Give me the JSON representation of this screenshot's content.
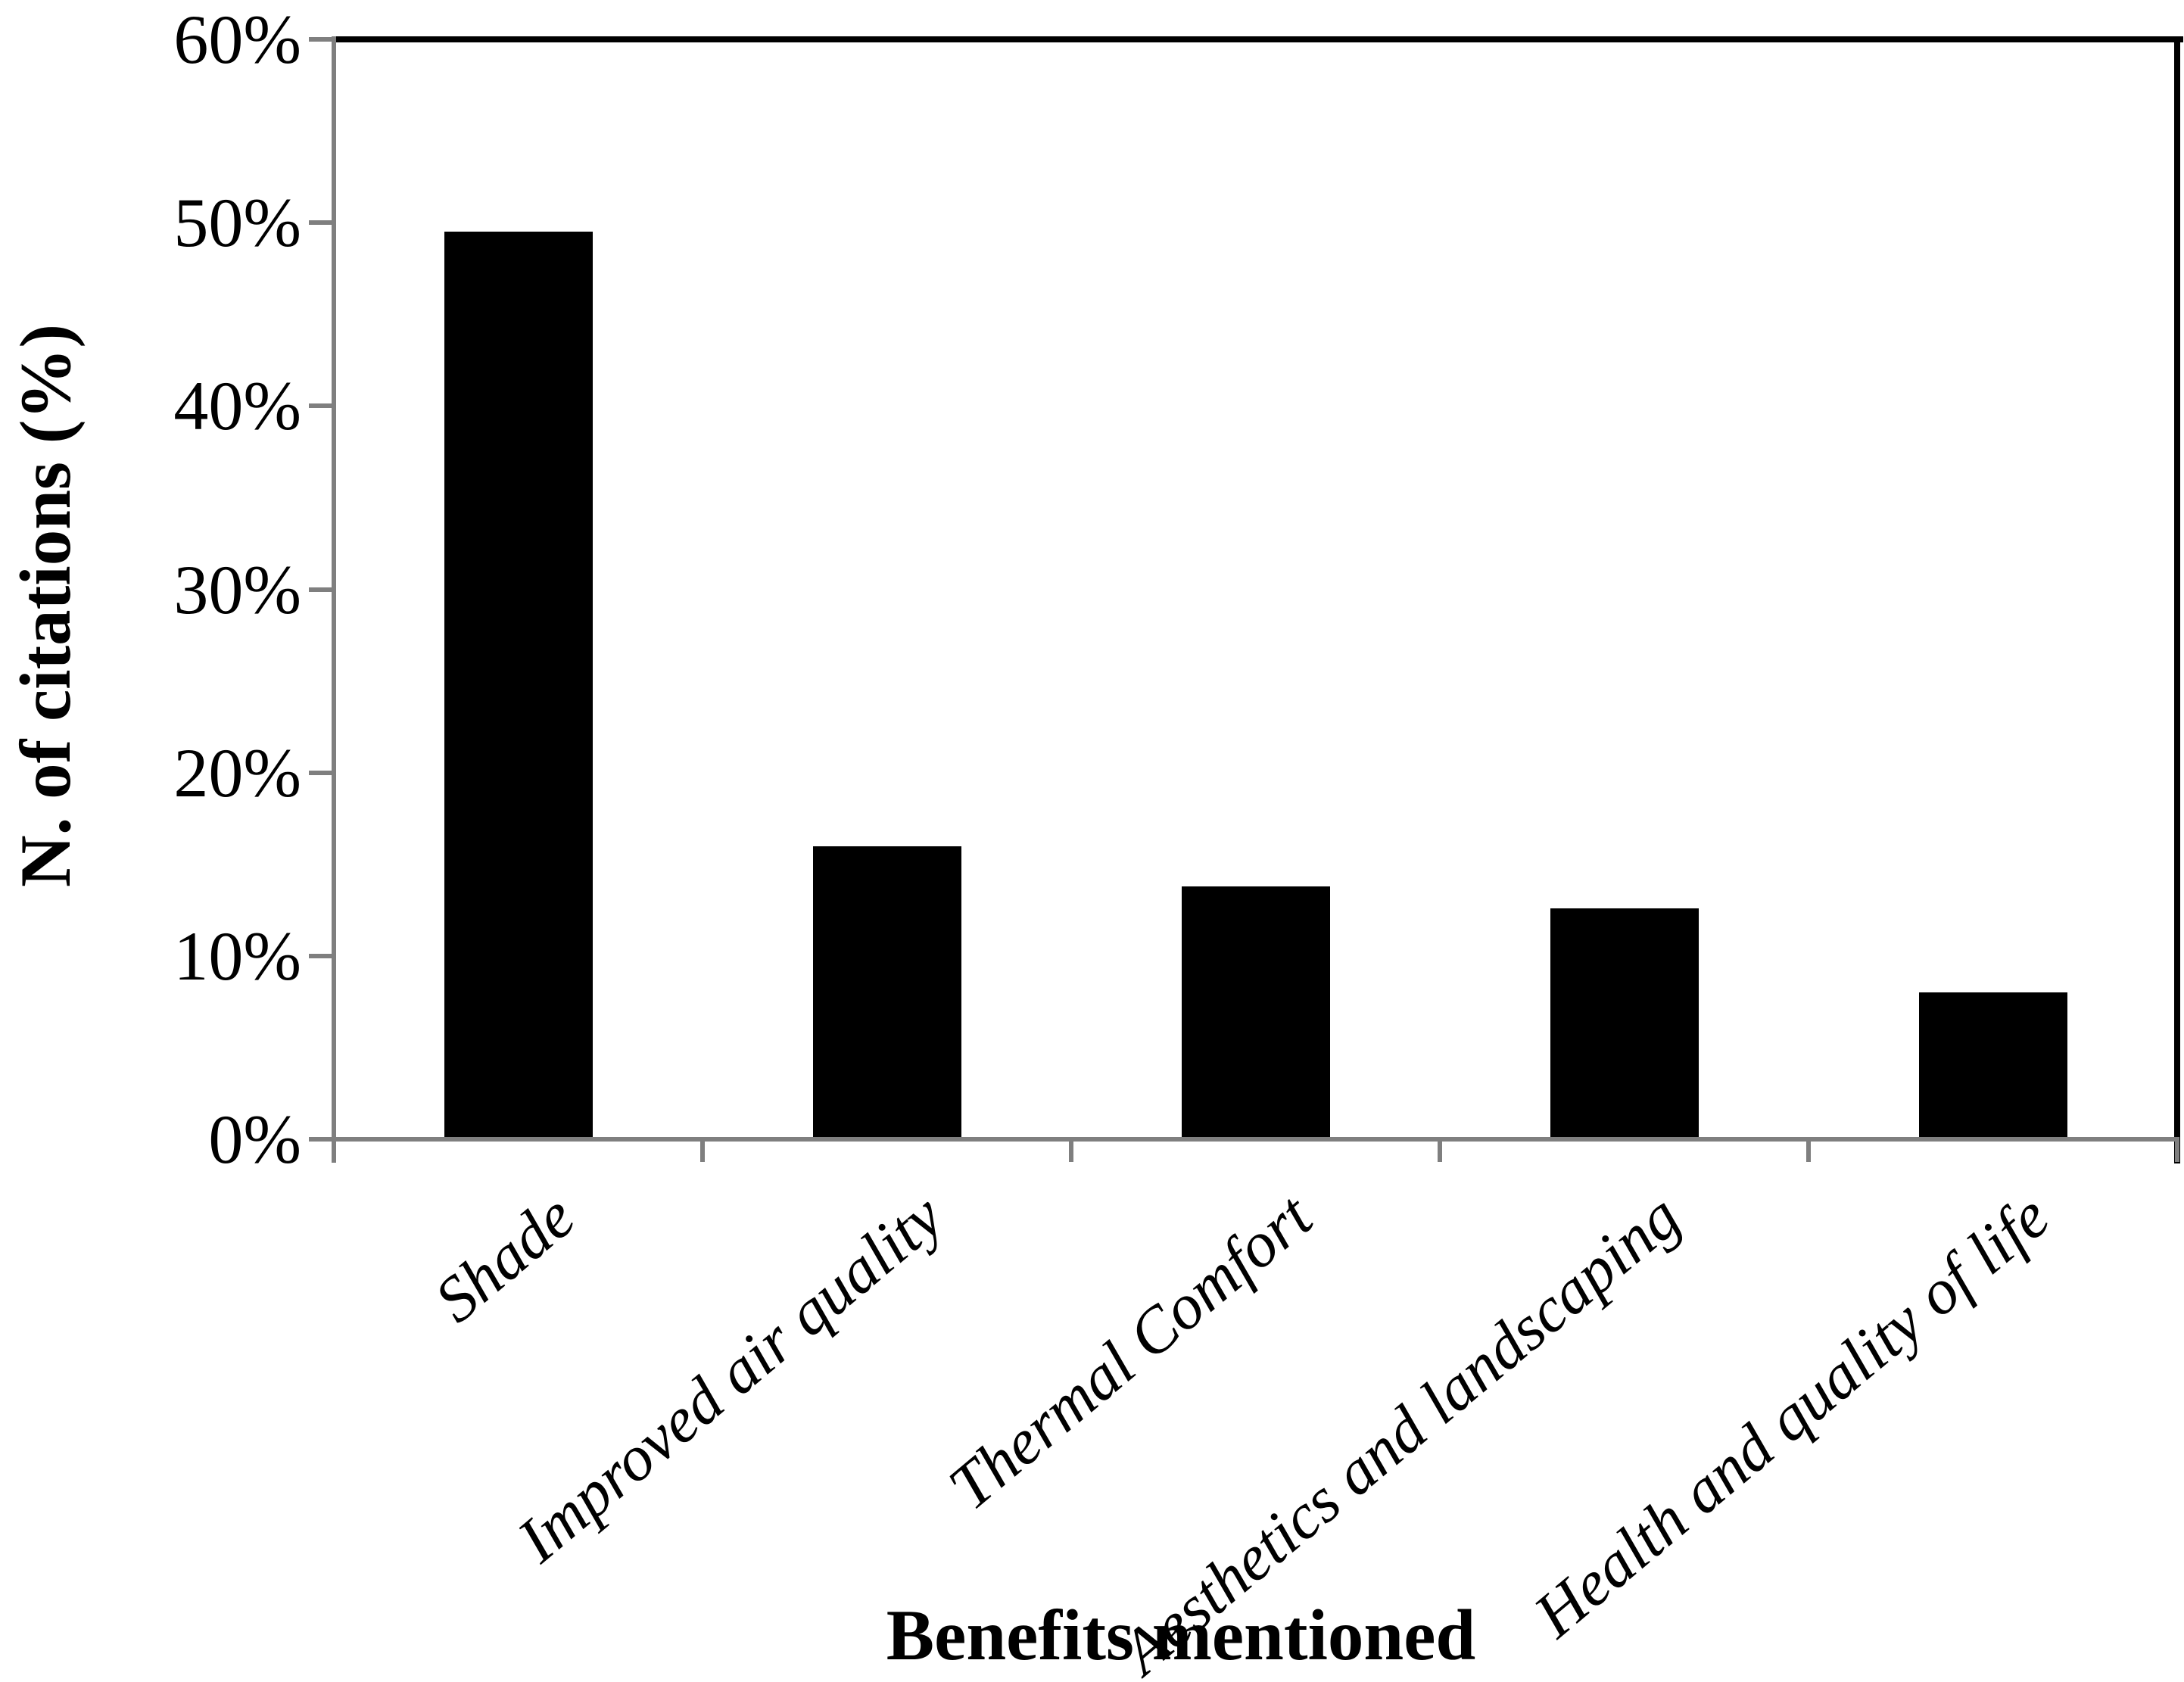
{
  "figure": {
    "y_axis_title": "N. of citations (%)",
    "x_axis_title": "Benefits mentioned"
  },
  "chart_data": {
    "type": "bar",
    "title": "",
    "xlabel": "Benefits mentioned",
    "ylabel": "N. of citations (%)",
    "categories": [
      "Shade",
      "Improved air quality",
      "Thermal Comfort",
      "Aesthetics and landscaping",
      "Health and quality of life"
    ],
    "values": [
      49.5,
      16,
      13.8,
      12.6,
      8
    ],
    "unit": "%",
    "ylim": [
      0,
      60
    ],
    "y_tick_values": [
      0,
      10,
      20,
      30,
      40,
      50,
      60
    ],
    "y_tick_labels": [
      "0%",
      "10%",
      "20%",
      "30%",
      "40%",
      "50%",
      "60%"
    ],
    "bar_color": "#000000",
    "axis_color": "#7f7f7f",
    "plot_border_color": "#000000",
    "grid": false,
    "legend": null
  }
}
